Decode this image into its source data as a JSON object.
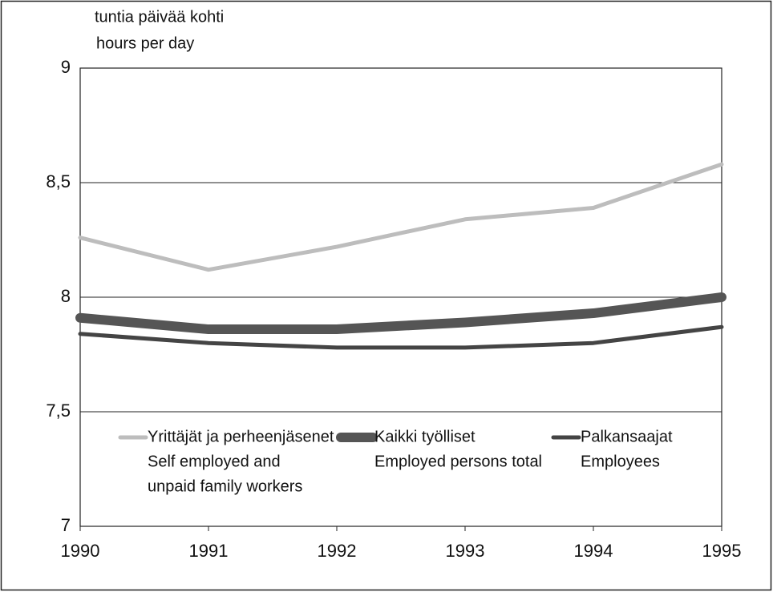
{
  "chart_data": {
    "type": "line",
    "y_label": "tuntia päivää kohti",
    "y_label_en": "hours per day",
    "x": [
      1990,
      1991,
      1992,
      1993,
      1994,
      1995
    ],
    "xlim": [
      1990,
      1995
    ],
    "xticks": [
      1990,
      1991,
      1992,
      1993,
      1994,
      1995
    ],
    "ylim": [
      7,
      9
    ],
    "yticks": [
      7,
      {
        "value": 7.5,
        "label": "7,5"
      },
      8,
      {
        "value": 8.5,
        "label": "8,5"
      },
      9
    ],
    "grid": true,
    "series": [
      {
        "name": "Yrittäjät ja perheenjäsenet",
        "name_en": [
          "Self employed and",
          "unpaid family workers"
        ],
        "color": "#bdbdbd",
        "values": [
          8.26,
          8.12,
          8.22,
          8.34,
          8.39,
          8.58
        ]
      },
      {
        "name": "Kaikki työlliset",
        "name_en": [
          "Employed persons total"
        ],
        "color": "#555555",
        "values": [
          7.91,
          7.86,
          7.86,
          7.89,
          7.93,
          8.0
        ]
      },
      {
        "name": "Palkansaajat",
        "name_en": [
          "Employees"
        ],
        "color": "#444444",
        "values": [
          7.84,
          7.8,
          7.78,
          7.78,
          7.8,
          7.87
        ]
      }
    ]
  }
}
